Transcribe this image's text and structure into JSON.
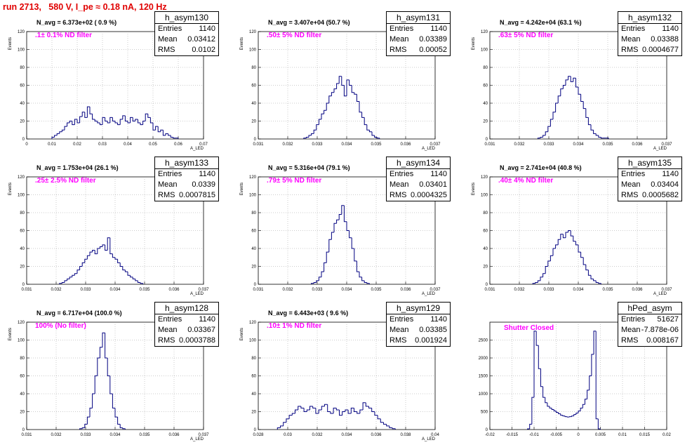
{
  "title": "run 2713,   580 V, I_pe ≈ 0.18 nA, 120 Hz",
  "colors": {
    "title": "#e00000",
    "histogram": "#000080",
    "annotation": "#ff00ff",
    "grid": "#999999"
  },
  "chart_data": [
    {
      "type": "bar",
      "name": "h_asym130",
      "stats": {
        "entries_label": "Entries",
        "entries": "1140",
        "mean_label": "Mean",
        "mean": "0.03412",
        "rms_label": "RMS",
        "rms": "0.0102"
      },
      "navg": "N_avg = 6.373e+02 ( 0.9 %)",
      "annotation": ".1± 0.1% ND filter",
      "xlabel": "A_LED",
      "ylabel": "Events",
      "xlim": [
        0,
        0.07
      ],
      "ylim": [
        0,
        120
      ],
      "xticks": [
        "0",
        "0.01",
        "0.02",
        "0.03",
        "0.04",
        "0.05",
        "0.06",
        "0.07"
      ],
      "yticks": [
        "0",
        "20",
        "40",
        "60",
        "80",
        "100",
        "120"
      ],
      "bins": {
        "x0": 0.01,
        "dx": 0.001,
        "values": [
          2,
          4,
          6,
          8,
          10,
          14,
          18,
          20,
          16,
          22,
          18,
          25,
          30,
          24,
          36,
          28,
          22,
          20,
          18,
          16,
          24,
          20,
          18,
          24,
          20,
          18,
          16,
          22,
          26,
          20,
          18,
          24,
          20,
          22,
          18,
          16,
          20,
          28,
          24,
          18,
          10,
          14,
          8,
          10,
          4,
          6,
          4,
          2,
          1,
          1
        ]
      }
    },
    {
      "type": "bar",
      "name": "h_asym131",
      "stats": {
        "entries_label": "Entries",
        "entries": "1140",
        "mean_label": "Mean",
        "mean": "0.03389",
        "rms_label": "RMS",
        "rms": "0.00052"
      },
      "navg": "N_avg = 3.407e+04 (50.7 %)",
      "annotation": ".50± 5% ND filter",
      "xlabel": "A_LED",
      "ylabel": "Events",
      "xlim": [
        0.0305,
        0.0375
      ],
      "ylim": [
        0,
        120
      ],
      "xticks": [
        "0.031",
        "0.032",
        "0.033",
        "0.034",
        "0.035",
        "0.036",
        "0.037"
      ],
      "yticks": [
        "0",
        "20",
        "40",
        "60",
        "80",
        "100",
        "120"
      ],
      "bins": {
        "x0": 0.0323,
        "dx": 0.0001,
        "values": [
          1,
          2,
          4,
          6,
          10,
          16,
          22,
          28,
          32,
          40,
          48,
          52,
          56,
          62,
          70,
          60,
          48,
          66,
          60,
          52,
          50,
          42,
          30,
          24,
          16,
          10,
          8,
          4,
          2,
          1
        ]
      }
    },
    {
      "type": "bar",
      "name": "h_asym132",
      "stats": {
        "entries_label": "Entries",
        "entries": "1140",
        "mean_label": "Mean",
        "mean": "0.03388",
        "rms_label": "RMS",
        "rms": "0.0004677"
      },
      "navg": "N_avg = 4.242e+04 (63.1 %)",
      "annotation": ".63± 5% ND filter",
      "xlabel": "A_LED",
      "ylabel": "Events",
      "xlim": [
        0.0305,
        0.0375
      ],
      "ylim": [
        0,
        120
      ],
      "xticks": [
        "0.031",
        "0.032",
        "0.033",
        "0.034",
        "0.035",
        "0.036",
        "0.037"
      ],
      "yticks": [
        "0",
        "20",
        "40",
        "60",
        "80",
        "100",
        "120"
      ],
      "bins": {
        "x0": 0.0324,
        "dx": 0.0001,
        "values": [
          1,
          2,
          4,
          8,
          14,
          22,
          30,
          40,
          48,
          56,
          60,
          66,
          70,
          64,
          68,
          58,
          50,
          42,
          34,
          24,
          16,
          10,
          6,
          4,
          2,
          1,
          1,
          1
        ]
      }
    },
    {
      "type": "bar",
      "name": "h_asym133",
      "stats": {
        "entries_label": "Entries",
        "entries": "1140",
        "mean_label": "Mean",
        "mean": "0.0339",
        "rms_label": "RMS",
        "rms": "0.0007815"
      },
      "navg": "N_avg = 1.753e+04 (26.1 %)",
      "annotation": ".25± 2.5% ND filter",
      "xlabel": "A_LED",
      "ylabel": "Events",
      "xlim": [
        0.0305,
        0.0375
      ],
      "ylim": [
        0,
        120
      ],
      "xticks": [
        "0.031",
        "0.032",
        "0.033",
        "0.034",
        "0.035",
        "0.036",
        "0.037"
      ],
      "yticks": [
        "0",
        "20",
        "40",
        "60",
        "80",
        "100",
        "120"
      ],
      "bins": {
        "x0": 0.0318,
        "dx": 0.0001,
        "values": [
          1,
          2,
          4,
          6,
          8,
          10,
          12,
          16,
          20,
          24,
          28,
          32,
          36,
          38,
          34,
          40,
          42,
          44,
          38,
          52,
          34,
          30,
          28,
          24,
          20,
          16,
          14,
          10,
          8,
          6,
          4,
          2,
          1
        ]
      }
    },
    {
      "type": "bar",
      "name": "h_asym134",
      "stats": {
        "entries_label": "Entries",
        "entries": "1140",
        "mean_label": "Mean",
        "mean": "0.03401",
        "rms_label": "RMS",
        "rms": "0.0004325"
      },
      "navg": "N_avg = 5.316e+04 (79.1 %)",
      "annotation": ".79± 5% ND filter",
      "xlabel": "A_LED",
      "ylabel": "Events",
      "xlim": [
        0.0305,
        0.0375
      ],
      "ylim": [
        0,
        120
      ],
      "xticks": [
        "0.031",
        "0.032",
        "0.033",
        "0.034",
        "0.035",
        "0.036",
        "0.037"
      ],
      "yticks": [
        "0",
        "20",
        "40",
        "60",
        "80",
        "100",
        "120"
      ],
      "bins": {
        "x0": 0.0326,
        "dx": 0.0001,
        "values": [
          1,
          2,
          4,
          8,
          14,
          24,
          36,
          50,
          58,
          68,
          72,
          78,
          88,
          70,
          60,
          52,
          40,
          26,
          14,
          8,
          4,
          2,
          1
        ]
      }
    },
    {
      "type": "bar",
      "name": "h_asym135",
      "stats": {
        "entries_label": "Entries",
        "entries": "1140",
        "mean_label": "Mean",
        "mean": "0.03404",
        "rms_label": "RMS",
        "rms": "0.0005682"
      },
      "navg": "N_avg = 2.741e+04 (40.8 %)",
      "annotation": ".40± 4% ND filter",
      "xlabel": "A_LED",
      "ylabel": "Events",
      "xlim": [
        0.0305,
        0.0375
      ],
      "ylim": [
        0,
        120
      ],
      "xticks": [
        "0.031",
        "0.032",
        "0.033",
        "0.034",
        "0.035",
        "0.036",
        "0.037"
      ],
      "yticks": [
        "0",
        "20",
        "40",
        "60",
        "80",
        "100",
        "120"
      ],
      "bins": {
        "x0": 0.0322,
        "dx": 0.0001,
        "values": [
          1,
          2,
          4,
          8,
          12,
          20,
          26,
          32,
          40,
          44,
          50,
          56,
          52,
          58,
          60,
          54,
          48,
          44,
          36,
          30,
          22,
          16,
          10,
          6,
          4,
          2,
          1
        ]
      }
    },
    {
      "type": "bar",
      "name": "h_asym128",
      "stats": {
        "entries_label": "Entries",
        "entries": "1140",
        "mean_label": "Mean",
        "mean": "0.03367",
        "rms_label": "RMS",
        "rms": "0.0003788"
      },
      "navg": "N_avg = 6.717e+04 (100.0 %)",
      "annotation": "100% (No filter)",
      "xlabel": "A_LED",
      "ylabel": "Events",
      "xlim": [
        0.0305,
        0.0375
      ],
      "ylim": [
        0,
        120
      ],
      "xticks": [
        "0.031",
        "0.032",
        "0.033",
        "0.034",
        "0.035",
        "0.036",
        "0.037"
      ],
      "yticks": [
        "0",
        "20",
        "40",
        "60",
        "80",
        "100",
        "120"
      ],
      "bins": {
        "x0": 0.0326,
        "dx": 0.0001,
        "values": [
          1,
          2,
          6,
          14,
          24,
          40,
          60,
          80,
          92,
          108,
          80,
          60,
          40,
          24,
          14,
          6,
          2,
          1
        ]
      }
    },
    {
      "type": "bar",
      "name": "h_asym129",
      "stats": {
        "entries_label": "Entries",
        "entries": "1140",
        "mean_label": "Mean",
        "mean": "0.03385",
        "rms_label": "RMS",
        "rms": "0.001924"
      },
      "navg": "N_avg = 6.443e+03 ( 9.6 %)",
      "annotation": ".10± 1% ND filter",
      "xlabel": "A_LED",
      "ylabel": "Events",
      "xlim": [
        0.028,
        0.04
      ],
      "ylim": [
        0,
        120
      ],
      "xticks": [
        "0.028",
        "0.03",
        "0.032",
        "0.034",
        "0.036",
        "0.038",
        "0.04"
      ],
      "yticks": [
        "0",
        "20",
        "40",
        "60",
        "80",
        "100",
        "120"
      ],
      "bins": {
        "x0": 0.0293,
        "dx": 0.0002,
        "values": [
          2,
          4,
          8,
          12,
          16,
          18,
          22,
          26,
          24,
          20,
          22,
          26,
          24,
          18,
          22,
          26,
          28,
          20,
          18,
          24,
          22,
          16,
          20,
          22,
          18,
          24,
          20,
          18,
          22,
          30,
          26,
          24,
          20,
          16,
          12,
          8,
          6,
          4,
          2,
          1
        ]
      }
    },
    {
      "type": "bar",
      "name": "hPed_asym",
      "stats": {
        "entries_label": "Entries",
        "entries": "51627",
        "mean_label": "Mean",
        "mean": "-7.878e-06",
        "rms_label": "RMS",
        "rms": "0.008167"
      },
      "navg": "",
      "annotation": "Shutter Closed",
      "xlabel": "",
      "ylabel": "",
      "xlim": [
        -0.02,
        0.02
      ],
      "ylim": [
        0,
        3000
      ],
      "xticks": [
        "-0.02",
        "-0.015",
        "-0.01",
        "-0.005",
        "0",
        "0.005",
        "0.01",
        "0.015",
        "0.02"
      ],
      "yticks": [
        "0",
        "500",
        "1000",
        "1500",
        "2000",
        "2500"
      ],
      "bins": {
        "x0": -0.0115,
        "dx": 0.0005,
        "values": [
          20,
          150,
          900,
          2750,
          2350,
          1700,
          1200,
          900,
          750,
          650,
          600,
          560,
          520,
          480,
          440,
          400,
          380,
          360,
          350,
          360,
          380,
          420,
          460,
          520,
          600,
          700,
          850,
          1100,
          1500,
          2100,
          2750,
          300,
          20
        ]
      }
    }
  ]
}
